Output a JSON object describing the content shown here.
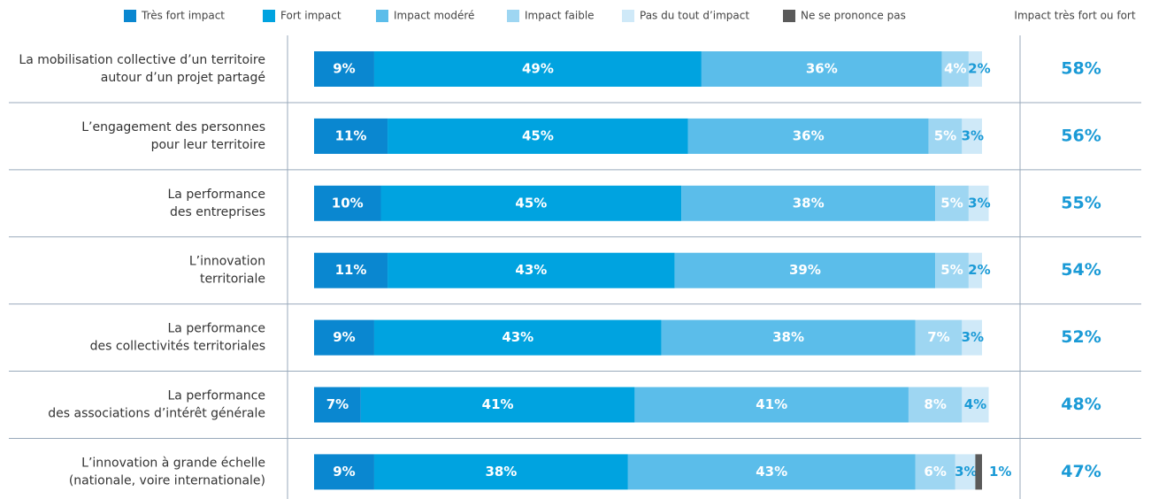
{
  "chart_data": {
    "type": "stacked-bar",
    "categories": [
      [
        "La mobilisation collective d’un territoire",
        "autour d’un projet partagé"
      ],
      [
        "L’engagement des personnes",
        "pour leur territoire"
      ],
      [
        "La performance",
        "des entreprises"
      ],
      [
        "L’innovation",
        "territoriale"
      ],
      [
        "La performance",
        "des collectivités territoriales"
      ],
      [
        "La performance",
        "des associations d’intérêt générale"
      ],
      [
        "L’innovation à grande échelle",
        "(nationale, voire internationale)"
      ]
    ],
    "series": [
      {
        "name": "Très fort impact",
        "color": "#0a87d0",
        "label_color": "#ffffff",
        "values": [
          9,
          11,
          10,
          11,
          9,
          7,
          9
        ],
        "value_labels": [
          "9%",
          "11%",
          "10%",
          "11%",
          "9%",
          "7%",
          "9%"
        ]
      },
      {
        "name": "Fort impact",
        "color": "#00a3e0",
        "label_color": "#ffffff",
        "values": [
          49,
          45,
          45,
          43,
          43,
          41,
          38
        ],
        "value_labels": [
          "49%",
          "45%",
          "45%",
          "43%",
          "43%",
          "41%",
          "38%"
        ]
      },
      {
        "name": "Impact modéré",
        "color": "#5bbdea",
        "label_color": "#ffffff",
        "values": [
          36,
          36,
          38,
          39,
          38,
          41,
          43
        ],
        "value_labels": [
          "36%",
          "36%",
          "38%",
          "39%",
          "38%",
          "41%",
          "43%"
        ]
      },
      {
        "name": "Impact faible",
        "color": "#9ed6f2",
        "label_color": "#ffffff",
        "values": [
          4,
          5,
          5,
          5,
          7,
          8,
          6
        ],
        "value_labels": [
          "4%",
          "5%",
          "5%",
          "5%",
          "7%",
          "8%",
          "6%"
        ]
      },
      {
        "name": "Pas du tout d’impact",
        "color": "#cfe9f8",
        "label_color": "#1a9ad6",
        "values": [
          2,
          3,
          3,
          2,
          3,
          4,
          3
        ],
        "value_labels": [
          "2%",
          "3%",
          "3%",
          "2%",
          "3%",
          "4%",
          "3%"
        ]
      },
      {
        "name": "Ne se prononce pas",
        "color": "#5a5a5a",
        "label_color": "#1a9ad6",
        "values": [
          0,
          0,
          0,
          0,
          0,
          0,
          1
        ],
        "value_labels": [
          null,
          null,
          null,
          null,
          null,
          null,
          "1%"
        ]
      }
    ],
    "totals": {
      "title": "Impact très fort ou fort",
      "color": "#1a9ad6",
      "values": [
        58,
        56,
        55,
        54,
        52,
        48,
        47
      ],
      "value_labels": [
        "58%",
        "56%",
        "55%",
        "54%",
        "52%",
        "48%",
        "47%"
      ]
    }
  }
}
